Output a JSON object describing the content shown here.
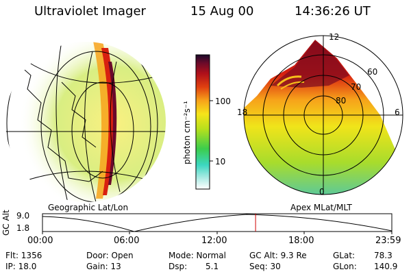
{
  "header": {
    "instrument": "Ultraviolet Imager",
    "date": "15 Aug 00",
    "time": "14:36:26 UT"
  },
  "colorbar": {
    "label": "photon cm⁻²s⁻¹",
    "ticks": [
      "100",
      "10"
    ]
  },
  "polar_plot": {
    "mlt_labels": [
      "12",
      "18",
      "6",
      "0"
    ],
    "lat_labels": [
      "60",
      "70",
      "80"
    ],
    "projection_label": "Apex MLat/MLT"
  },
  "geo_plot": {
    "projection_label": "Geographic Lat/Lon"
  },
  "orbit_plot": {
    "ylabel": "GC Alt",
    "y_ticks": [
      "9.0",
      "1.8"
    ],
    "x_ticks": [
      "00:00",
      "06:00",
      "12:00",
      "18:00",
      "23:59"
    ],
    "current_time_fraction": 0.61
  },
  "status": {
    "flt": "Flt: 1356",
    "ip": "IP: 18.0",
    "door": "Door: Open",
    "gain": "Gain: 13",
    "mode": "Mode: Normal",
    "dsp_label": "Dsp:",
    "dsp_value": "5.1",
    "gc_alt": "GC Alt: 9.3 Re",
    "seq": "Seq: 30",
    "glat_label": "GLat:",
    "glat_value": "78.3",
    "glon_label": "GLon:",
    "glon_value": "140.9"
  }
}
